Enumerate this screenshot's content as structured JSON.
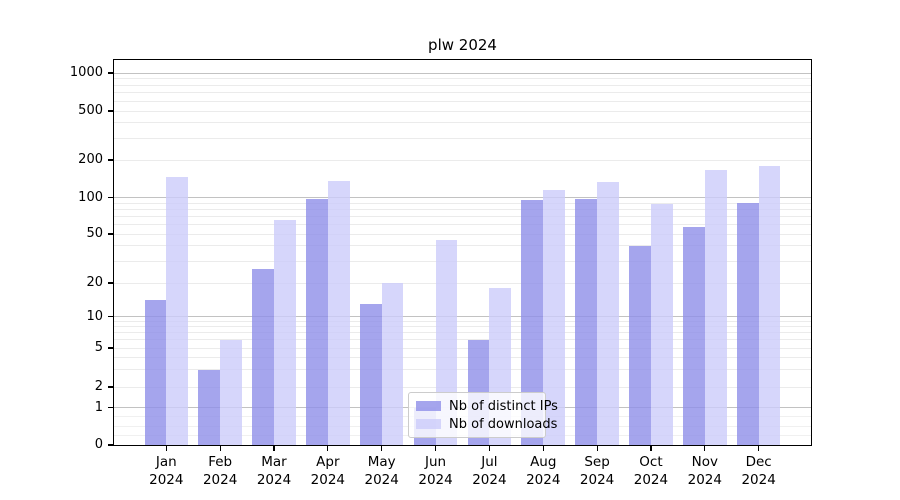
{
  "title": "plw 2024",
  "colors": {
    "ips_bar": "#8f8fe8",
    "downloads_bar": "#ccccfa",
    "grid_major": "#c2c2c2",
    "grid_minor": "#ebebeb",
    "grid_sub1": "#f0f0f0",
    "axis": "#000000"
  },
  "legend": {
    "items": [
      {
        "label": "Nb of distinct IPs",
        "color_key": "ips_bar"
      },
      {
        "label": "Nb of downloads",
        "color_key": "downloads_bar"
      }
    ]
  },
  "y_axis": {
    "tick_labels": [
      "0",
      "1",
      "2",
      "5",
      "10",
      "20",
      "50",
      "100",
      "200",
      "500",
      "1000"
    ],
    "tick_values": [
      0,
      1,
      2,
      5,
      10,
      20,
      50,
      100,
      200,
      500,
      1000
    ]
  },
  "x_axis": {
    "months": [
      "Jan",
      "Feb",
      "Mar",
      "Apr",
      "May",
      "Jun",
      "Jul",
      "Aug",
      "Sep",
      "Oct",
      "Nov",
      "Dec"
    ],
    "year": "2024"
  },
  "chart_data": {
    "type": "bar",
    "title": "plw 2024",
    "categories": [
      "Jan 2024",
      "Feb 2024",
      "Mar 2024",
      "Apr 2024",
      "May 2024",
      "Jun 2024",
      "Jul 2024",
      "Aug 2024",
      "Sep 2024",
      "Oct 2024",
      "Nov 2024",
      "Dec 2024"
    ],
    "series": [
      {
        "name": "Nb of distinct IPs",
        "values": [
          14,
          3,
          26,
          97,
          13,
          1,
          6,
          95,
          97,
          40,
          57,
          90
        ]
      },
      {
        "name": "Nb of downloads",
        "values": [
          145,
          6,
          65,
          135,
          20,
          45,
          18,
          115,
          133,
          88,
          165,
          180
        ]
      }
    ],
    "xlabel": "",
    "ylabel": "",
    "yscale": "log-like (symlog: linear 0-1, log above)",
    "yticks": [
      0,
      1,
      2,
      5,
      10,
      20,
      50,
      100,
      200,
      500,
      1000
    ],
    "ylim": [
      0,
      1300
    ],
    "grid": true,
    "legend_position": "lower center"
  }
}
